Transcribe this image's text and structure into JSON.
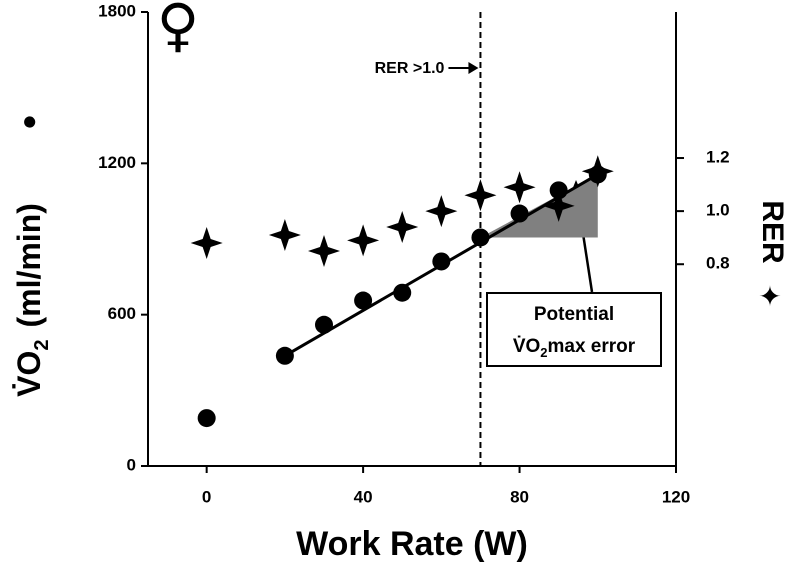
{
  "chart_data": {
    "type": "scatter",
    "symbol": "♀",
    "xlabel": "Work Rate (W)",
    "ylabel_main": "V̇O",
    "ylabel_sub": "2",
    "ylabel_unit": "(ml/min)",
    "ylabel_marker": "●",
    "y2label": "RER",
    "y2label_marker": "✦",
    "xlim": [
      -15,
      120
    ],
    "xticks": [
      0,
      40,
      80,
      120
    ],
    "ylim": [
      0,
      1800
    ],
    "yticks": [
      0,
      600,
      1200,
      1800
    ],
    "y2lim": [
      0.04,
      1.75
    ],
    "y2ticks": [
      0.8,
      {
        "value": 1.0,
        "label": "1.0"
      },
      1.2
    ],
    "series": [
      {
        "marker": "circle",
        "color": "#000000",
        "x": [
          0,
          20,
          30,
          40,
          50,
          60,
          70,
          80,
          90,
          100
        ],
        "values": [
          190,
          437,
          560,
          656,
          687,
          811,
          906,
          1001,
          1093,
          1156
        ]
      },
      {
        "marker": "star",
        "color": "#000000",
        "axis": "y2",
        "x": [
          0,
          20,
          30,
          40,
          50,
          60,
          70,
          80,
          90,
          100
        ],
        "values": [
          0.88,
          0.91,
          0.85,
          0.89,
          0.94,
          1.0,
          1.06,
          1.09,
          1.02,
          1.15
        ]
      }
    ],
    "fit_line": {
      "x": [
        20,
        100
      ],
      "values": [
        437,
        1156
      ],
      "color": "#000000"
    },
    "error_region": {
      "x": [
        70,
        100,
        100
      ],
      "values": [
        906,
        1156,
        906
      ],
      "color": "#808080"
    },
    "threshold": {
      "x": 70,
      "label": "RER >1.0"
    },
    "callout": {
      "line1": "Potential",
      "line2_main": "V̇O",
      "line2_sub": "2",
      "line2_rest": "max error"
    }
  }
}
